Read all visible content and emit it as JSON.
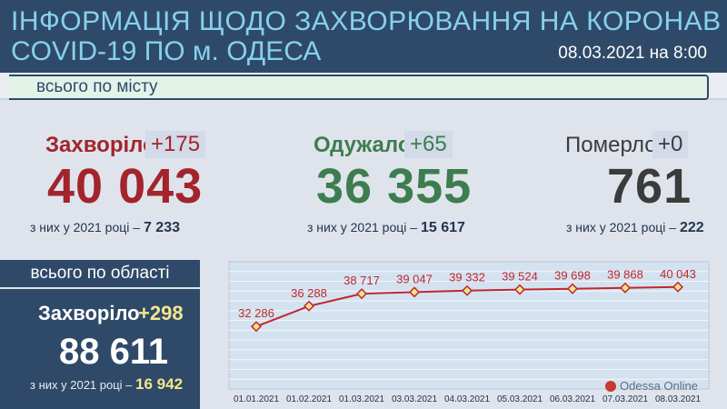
{
  "header": {
    "title_line1": "ІНФОРМАЦІЯ ЩОДО ЗАХВОРЮВАННЯ НА КОРОНАВІРУСНУ ІНФЕКЦІЮ",
    "title_line2": "COVID-19 ПО м. ОДЕСА",
    "date": "08.03.2021 на 8:00"
  },
  "city": {
    "label": "всього по місту",
    "sick": {
      "label": "Захворіло",
      "delta": "+175",
      "value": "40 043",
      "sub_prefix": "з них у 2021 році – ",
      "sub_value": "7 233"
    },
    "recovered": {
      "label": "Одужало",
      "delta": "+65",
      "value": "36 355",
      "sub_prefix": "з них у 2021 році – ",
      "sub_value": "15 617"
    },
    "died": {
      "label": "Померло",
      "delta": "+0",
      "value": "761",
      "sub_prefix": "з них у 2021 році – ",
      "sub_value": "222"
    }
  },
  "region": {
    "title": "всього по області",
    "sick_label": "Захворіло",
    "sick_delta": "+298",
    "value": "88 611",
    "sub_prefix": "з них у 2021 році – ",
    "sub_value": "16 942"
  },
  "watermark": "Odessa Online",
  "colors": {
    "header_bg": "#2f4a68",
    "title": "#86d1ee",
    "sick": "#a3242c",
    "recovered": "#3d7d4f",
    "died": "#3b3b3b",
    "line": "#c0272d",
    "highlight": "#f4e58d"
  },
  "chart_data": {
    "type": "line",
    "categories": [
      "01.01.2021",
      "01.02.2021",
      "01.03.2021",
      "03.03.2021",
      "04.03.2021",
      "05.03.2021",
      "06.03.2021",
      "07.03.2021",
      "08.03.2021"
    ],
    "values": [
      32286,
      36288,
      38717,
      39047,
      39332,
      39524,
      39698,
      39868,
      40043
    ],
    "value_labels": [
      "32 286",
      "36 288",
      "38 717",
      "39 047",
      "39 332",
      "39 524",
      "39 698",
      "39 868",
      "40 043"
    ],
    "ylim": [
      20000,
      45000
    ],
    "grid": true
  }
}
